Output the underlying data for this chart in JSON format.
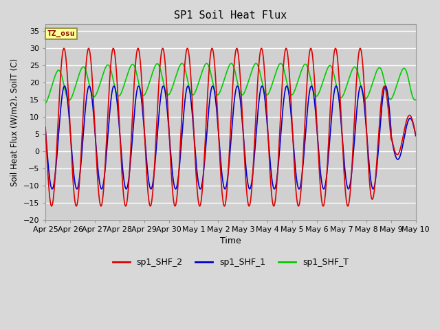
{
  "title": "SP1 Soil Heat Flux",
  "xlabel": "Time",
  "ylabel": "Soil Heat Flux (W/m2), SoilT (C)",
  "ylim": [
    -20,
    37
  ],
  "yticks": [
    -20,
    -15,
    -10,
    -5,
    0,
    5,
    10,
    15,
    20,
    25,
    30,
    35
  ],
  "background_color": "#d8d8d8",
  "plot_bg_color": "#d0d0d0",
  "grid_color": "#ffffff",
  "legend_labels": [
    "sp1_SHF_2",
    "sp1_SHF_1",
    "sp1_SHF_T"
  ],
  "legend_colors": [
    "#dd0000",
    "#0000cc",
    "#00cc00"
  ],
  "tz_label": "TZ_osu",
  "tz_box_color": "#ffff99",
  "tz_border_color": "#888833",
  "tz_text_color": "#880000",
  "tick_labels": [
    "Apr 25",
    "Apr 26",
    "Apr 27",
    "Apr 28",
    "Apr 29",
    "Apr 30",
    "May 1",
    "May 2",
    "May 3",
    "May 4",
    "May 5",
    "May 6",
    "May 7",
    "May 8",
    "May 9",
    "May 10"
  ],
  "figsize": [
    6.4,
    4.8
  ],
  "dpi": 100
}
